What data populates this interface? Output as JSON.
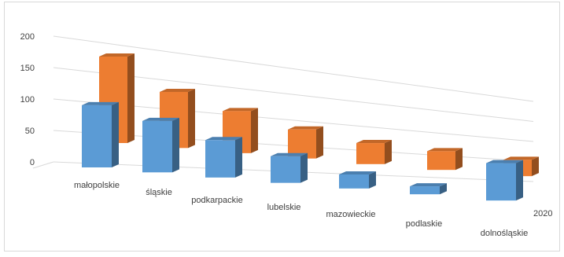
{
  "chart_data": {
    "type": "bar",
    "style": "3d-column",
    "categories": [
      "małopolskie",
      "śląskie",
      "podkarpackie",
      "lubelskie",
      "mazowieckie",
      "podlaskie",
      "dolnośląskie"
    ],
    "series": [
      {
        "name": "",
        "values": [
          133,
          110,
          80,
          57,
          30,
          17,
          80
        ],
        "color": "#5b9bd5"
      },
      {
        "name": "2020",
        "values": [
          185,
          120,
          90,
          62,
          45,
          40,
          35
        ],
        "color": "#ed7d31"
      }
    ],
    "y_ticks": [
      "0",
      "50",
      "100",
      "150",
      "200"
    ],
    "ylim": [
      0,
      200
    ],
    "grid": true,
    "legend": "none"
  }
}
